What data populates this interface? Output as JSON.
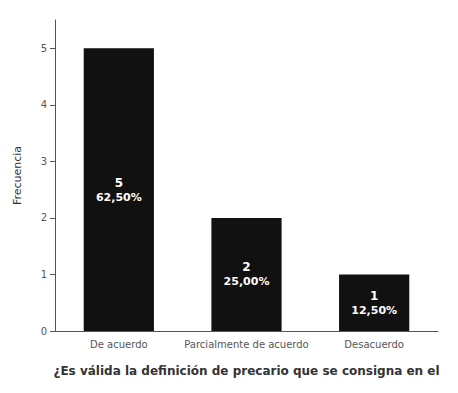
{
  "chart_data": {
    "type": "bar",
    "categories": [
      "De acuerdo",
      "Parcialmente de acuerdo",
      "Desacuerdo"
    ],
    "values": [
      5,
      2,
      1
    ],
    "percentages": [
      62.5,
      25.0,
      12.5
    ],
    "percentage_labels": [
      "62,50%",
      "25,00%",
      "12,50%"
    ],
    "color": "#111111",
    "xlabel": "¿Es válida la definición de precario que se consigna en el",
    "ylabel": "Frecuencia",
    "ylim": [
      0,
      5.5
    ],
    "yticks": [
      0,
      1,
      2,
      3,
      4,
      5
    ],
    "grid": false,
    "data_labels": true
  }
}
